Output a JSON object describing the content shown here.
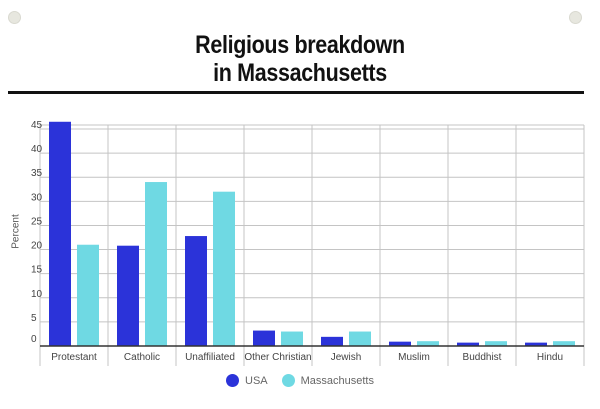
{
  "colors": {
    "usa": "#2b33d9",
    "massachusetts": "#6fd9e3",
    "grid": "#bfbfbf",
    "axis": "#333333"
  },
  "chart_data": {
    "type": "bar",
    "title": "Religious breakdown in Massachusetts",
    "title_lines": [
      "Religious breakdown",
      "in Massachusetts"
    ],
    "xlabel": "",
    "ylabel": "Percent",
    "ylim": [
      0,
      45
    ],
    "yticks": [
      0,
      5,
      10,
      15,
      20,
      25,
      30,
      35,
      40,
      45
    ],
    "grid": true,
    "legend_position": "bottom",
    "categories": [
      "Protestant",
      "Catholic",
      "Unaffiliated",
      "Other Christian",
      "Jewish",
      "Muslim",
      "Buddhist",
      "Hindu"
    ],
    "series": [
      {
        "name": "USA",
        "color": "#2b33d9",
        "values": [
          46.5,
          20.8,
          22.8,
          3.2,
          1.9,
          0.9,
          0.7,
          0.7
        ]
      },
      {
        "name": "Massachusetts",
        "color": "#6fd9e3",
        "values": [
          21.0,
          34.0,
          32.0,
          3.0,
          3.0,
          1.0,
          1.0,
          1.0
        ]
      }
    ]
  }
}
